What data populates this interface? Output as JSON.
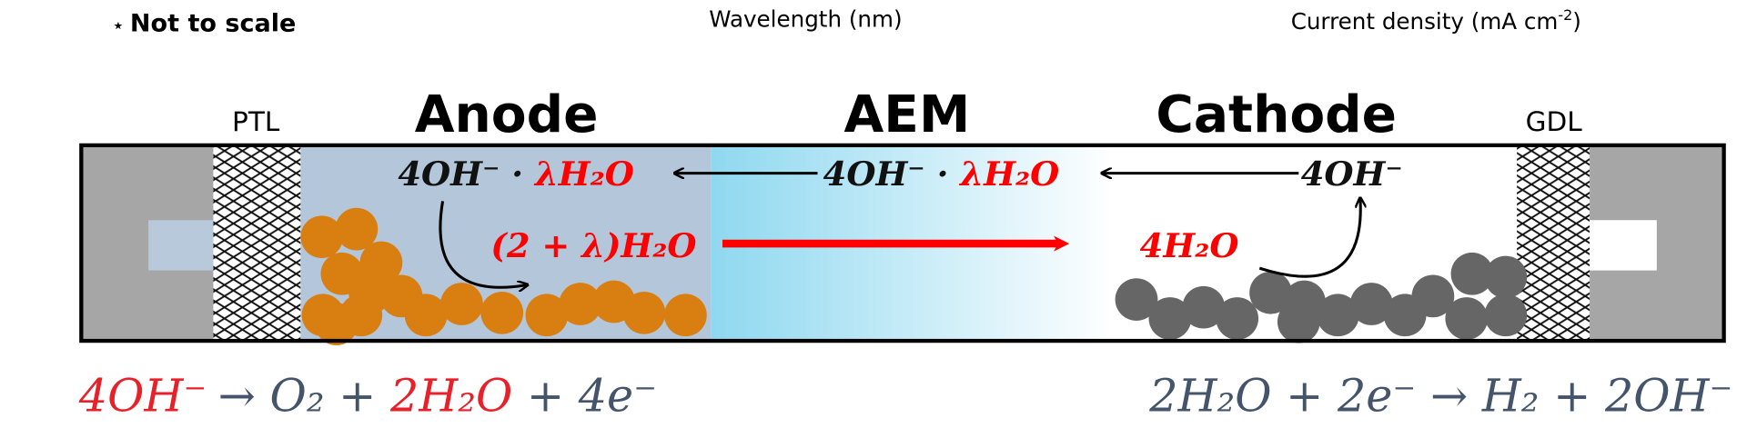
{
  "header": {
    "note": "Not to scale",
    "label_left": "Wavelength (nm)",
    "label_right": "Current density (mA cm",
    "label_right_sup": "-2",
    "label_right_end": ")"
  },
  "labels": {
    "ptl": "PTL",
    "anode": "Anode",
    "aem": "AEM",
    "cathode": "Cathode",
    "gdl": "GDL"
  },
  "species": {
    "anode_hydrated": [
      "4OH⁻ · ",
      "λH₂O"
    ],
    "aem_hydrated": [
      "4OH⁻ · ",
      "λH₂O"
    ],
    "cathode_oh": "4OH⁻",
    "anode_water": "(2 + λ)H₂O",
    "cathode_water": "4H₂O"
  },
  "equations": {
    "anode": [
      "4OH⁻",
      "→ O₂ + ",
      "2H₂O",
      " + 4e⁻"
    ],
    "cathode": "2H₂O + 2e⁻ → H₂ + 2OH⁻"
  }
}
